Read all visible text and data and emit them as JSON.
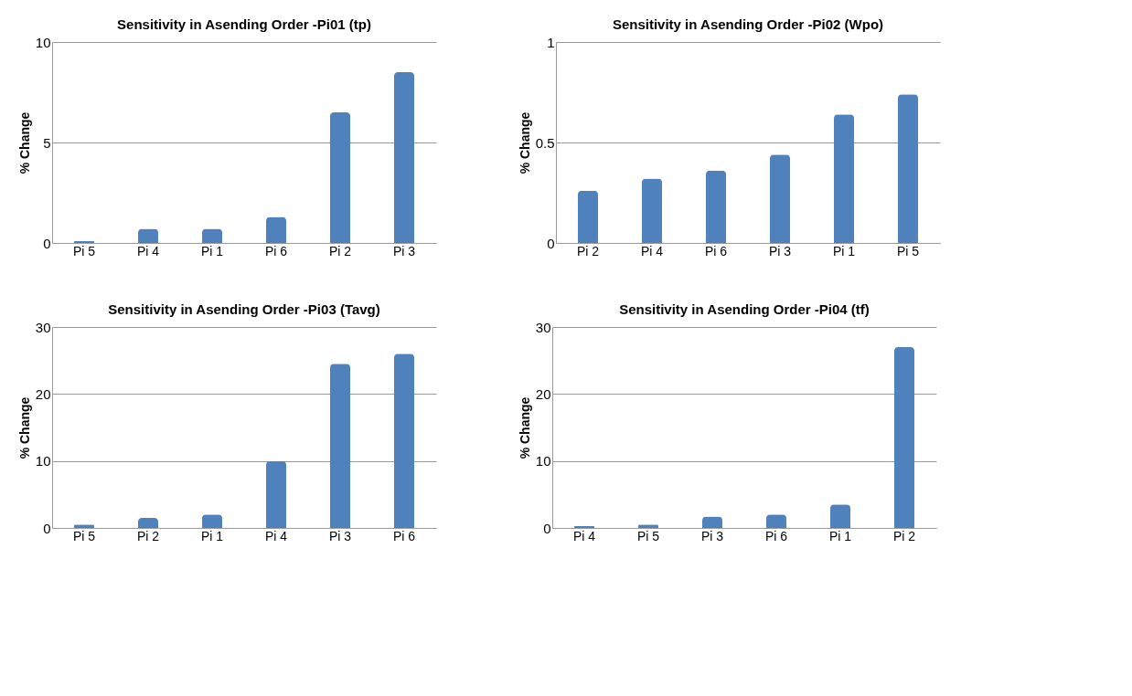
{
  "chart_data": [
    {
      "type": "bar",
      "title": "Sensitivity in Asending Order -Pi01 (tp)",
      "ylabel": "% Change",
      "categories": [
        "Pi 5",
        "Pi 4",
        "Pi 1",
        "Pi 6",
        "Pi 2",
        "Pi 3"
      ],
      "values": [
        0.1,
        0.7,
        0.7,
        1.3,
        6.5,
        8.5
      ],
      "color": "#4f81bd",
      "ylim": [
        0,
        10
      ],
      "yticks": [
        0,
        5,
        10
      ],
      "grid": "y"
    },
    {
      "type": "bar",
      "title": "Sensitivity in Asending Order -Pi02 (Wpo)",
      "ylabel": "% Change",
      "categories": [
        "Pi 2",
        "Pi 4",
        "Pi 6",
        "Pi 3",
        "Pi 1",
        "Pi 5"
      ],
      "values": [
        0.26,
        0.32,
        0.36,
        0.44,
        0.64,
        0.74
      ],
      "color": "#4f81bd",
      "ylim": [
        0,
        1
      ],
      "yticks": [
        0,
        0.5,
        1
      ],
      "grid": "y"
    },
    {
      "type": "bar",
      "title": "Sensitivity in Asending Order -Pi03 (Tavg)",
      "ylabel": "% Change",
      "categories": [
        "Pi 5",
        "Pi 2",
        "Pi 1",
        "Pi 4",
        "Pi 3",
        "Pi 6"
      ],
      "values": [
        0.5,
        1.5,
        2,
        10,
        24.5,
        26
      ],
      "color": "#4f81bd",
      "ylim": [
        0,
        30
      ],
      "yticks": [
        0,
        10,
        20,
        30
      ],
      "grid": "y"
    },
    {
      "type": "bar",
      "title": "Sensitivity in Asending Order -Pi04 (tf)",
      "ylabel": "% Change",
      "categories": [
        "Pi 4",
        "Pi 5",
        "Pi 3",
        "Pi 6",
        "Pi 1",
        "Pi 2"
      ],
      "values": [
        0.3,
        0.5,
        1.7,
        2,
        3.5,
        27
      ],
      "color": "#4f81bd",
      "ylim": [
        0,
        30
      ],
      "yticks": [
        0,
        10,
        20,
        30
      ],
      "grid": "y"
    }
  ]
}
